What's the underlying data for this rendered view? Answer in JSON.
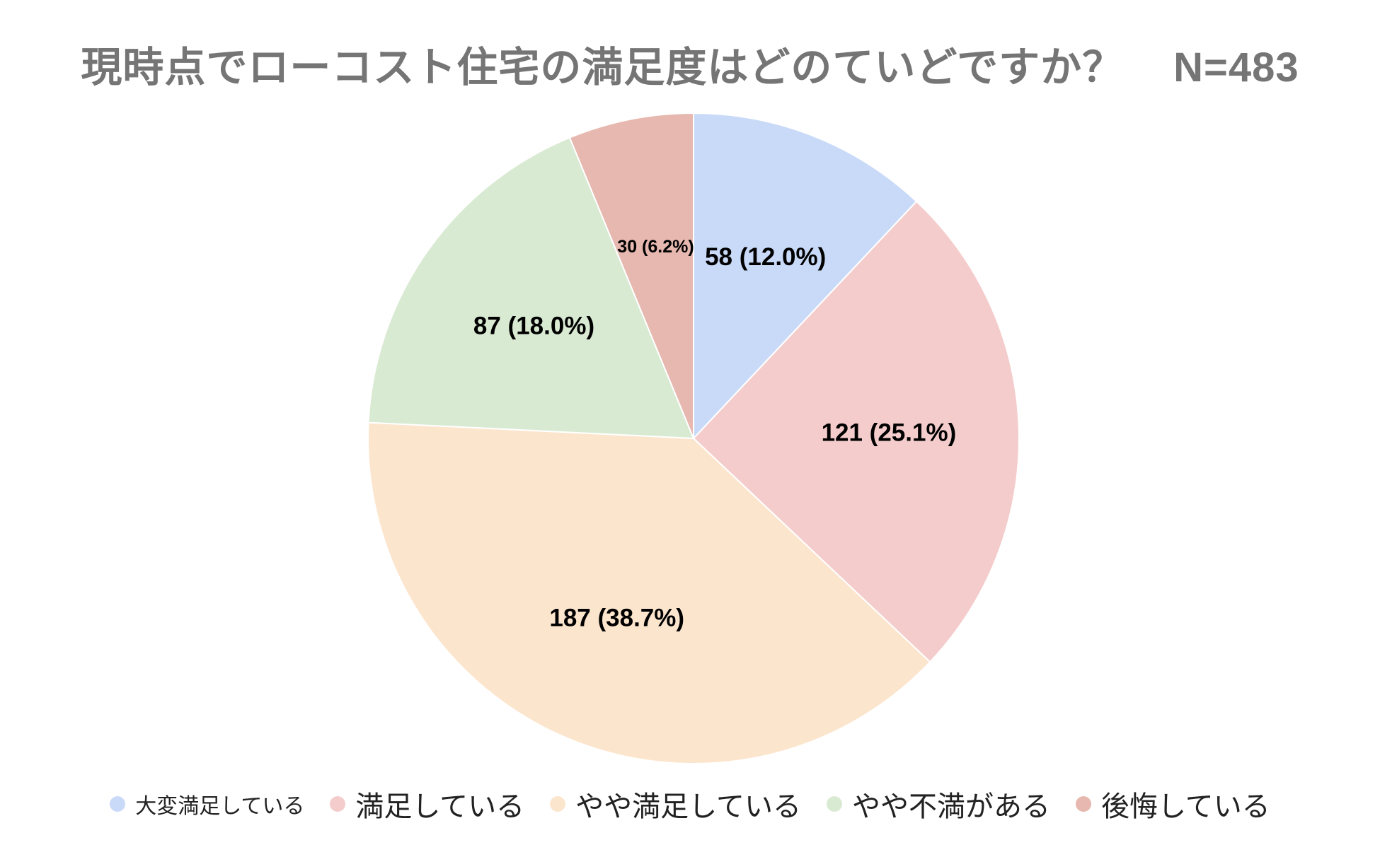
{
  "chart_data": {
    "type": "pie",
    "title": "現時点でローコスト住宅の満足度はどのていどですか？",
    "n_label": "N=483",
    "slices": [
      {
        "label": "大変満足している",
        "value": 58,
        "display": "58 (12.0%)",
        "color": "#c9daf8"
      },
      {
        "label": "満足している",
        "value": 121,
        "display": "121 (25.1%)",
        "color": "#f4cccc"
      },
      {
        "label": "やや満足している",
        "value": 187,
        "display": "187 (38.7%)",
        "color": "#fce5cd"
      },
      {
        "label": "やや不満がある",
        "value": 87,
        "display": "87 (18.0%)",
        "color": "#d9ead3"
      },
      {
        "label": "後悔している",
        "value": 30,
        "display": "30 (6.2%)",
        "color": "#e6b8af"
      }
    ],
    "start_angle": "12 o'clock",
    "direction": "clockwise",
    "legend_position": "bottom"
  }
}
